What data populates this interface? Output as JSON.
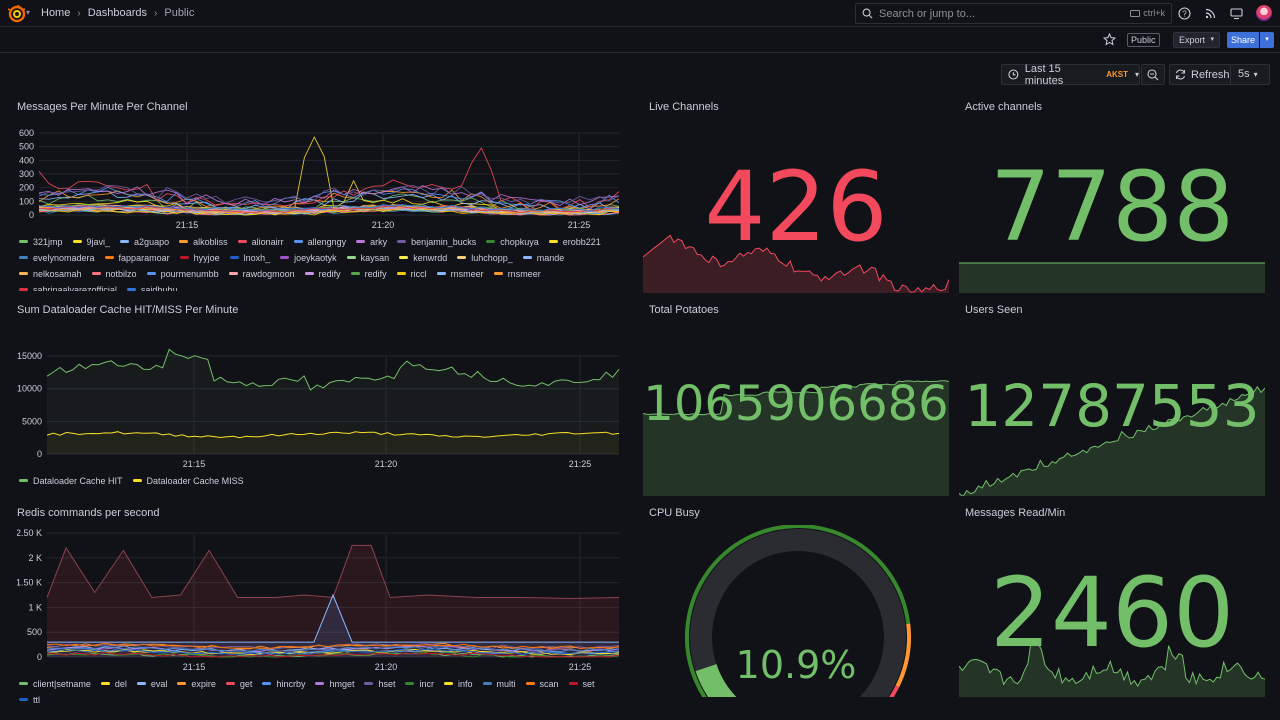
{
  "nav": {
    "breadcrumb": [
      "Home",
      "Dashboards",
      "Public"
    ],
    "search_placeholder": "Search or jump to...",
    "search_shortcut": "ctrl+k"
  },
  "toolbar": {
    "public_label": "Public",
    "export_label": "Export",
    "share_label": "Share",
    "time_range": "Last 15 minutes",
    "timezone": "AKST",
    "refresh_label": "Refresh",
    "refresh_interval": "5s"
  },
  "colors": {
    "red": "#f2495c",
    "green": "#73bf69",
    "yellow": "#fade2a",
    "orange": "#ff9830"
  },
  "panels": {
    "messages_per_minute": {
      "title": "Messages Per Minute Per Channel",
      "y_ticks": [
        "600",
        "500",
        "400",
        "300",
        "200",
        "100",
        "0"
      ],
      "x_ticks": [
        "21:15",
        "21:20",
        "21:25"
      ],
      "legend": [
        {
          "name": "321jmp",
          "color": "#73bf69"
        },
        {
          "name": "9javi_",
          "color": "#fade2a"
        },
        {
          "name": "a2guapo",
          "color": "#8ab8ff"
        },
        {
          "name": "alkobliss",
          "color": "#ff9830"
        },
        {
          "name": "alionairr",
          "color": "#f2495c"
        },
        {
          "name": "allengngy",
          "color": "#5794f2"
        },
        {
          "name": "arky",
          "color": "#b877d9"
        },
        {
          "name": "benjamin_bucks",
          "color": "#705da0"
        },
        {
          "name": "chopkuya",
          "color": "#37872d"
        },
        {
          "name": "erobb221",
          "color": "#fade2a"
        },
        {
          "name": "evelynomadera",
          "color": "#447ebc"
        },
        {
          "name": "fapparamoar",
          "color": "#ff780a"
        },
        {
          "name": "hyyjoe",
          "color": "#c4162a"
        },
        {
          "name": "lnoxh_",
          "color": "#1f60c4"
        },
        {
          "name": "joeykaotyk",
          "color": "#a352cc"
        },
        {
          "name": "kaysan",
          "color": "#96d98d"
        },
        {
          "name": "kenwrdd",
          "color": "#ffee52"
        },
        {
          "name": "luhchopp_",
          "color": "#ffcb7d"
        },
        {
          "name": "mande",
          "color": "#8ab8ff"
        },
        {
          "name": "nelkosamah",
          "color": "#ffb357"
        },
        {
          "name": "notbilzo",
          "color": "#ff7383"
        },
        {
          "name": "pourmenumbb",
          "color": "#5794f2"
        },
        {
          "name": "rawdogmoon",
          "color": "#ffa6b0"
        },
        {
          "name": "redify",
          "color": "#ca95e5"
        },
        {
          "name": "redify",
          "color": "#56a64b"
        },
        {
          "name": "riccl",
          "color": "#f2cc0c"
        },
        {
          "name": "rnsmeer",
          "color": "#8ab8ff"
        },
        {
          "name": "rnsmeer",
          "color": "#ff9830"
        },
        {
          "name": "sabrinaalvarezofficial",
          "color": "#e02f44"
        },
        {
          "name": "saidbubu",
          "color": "#3274d9"
        }
      ]
    },
    "dataloader": {
      "title": "Sum Dataloader Cache HIT/MISS Per Minute",
      "y_ticks": [
        "15000",
        "10000",
        "5000",
        "0"
      ],
      "x_ticks": [
        "21:15",
        "21:20",
        "21:25"
      ],
      "legend": [
        {
          "name": "Dataloader Cache HIT",
          "color": "#73bf69"
        },
        {
          "name": "Dataloader Cache MISS",
          "color": "#fade2a"
        }
      ]
    },
    "redis": {
      "title": "Redis commands per second",
      "y_ticks": [
        "2.50 K",
        "2 K",
        "1.50 K",
        "1 K",
        "500",
        "0"
      ],
      "x_ticks": [
        "21:15",
        "21:20",
        "21:25"
      ],
      "legend": [
        {
          "name": "client|setname",
          "color": "#73bf69"
        },
        {
          "name": "del",
          "color": "#fade2a"
        },
        {
          "name": "eval",
          "color": "#8ab8ff"
        },
        {
          "name": "expire",
          "color": "#ff9830"
        },
        {
          "name": "get",
          "color": "#f2495c"
        },
        {
          "name": "hincrby",
          "color": "#5794f2"
        },
        {
          "name": "hmget",
          "color": "#b877d9"
        },
        {
          "name": "hset",
          "color": "#705da0"
        },
        {
          "name": "incr",
          "color": "#37872d"
        },
        {
          "name": "info",
          "color": "#fade2a"
        },
        {
          "name": "multi",
          "color": "#447ebc"
        },
        {
          "name": "scan",
          "color": "#ff780a"
        },
        {
          "name": "set",
          "color": "#c4162a"
        },
        {
          "name": "ttl",
          "color": "#1f60c4"
        }
      ]
    },
    "live_channels": {
      "title": "Live Channels",
      "value": "426",
      "color": "#f2495c"
    },
    "active_channels": {
      "title": "Active channels",
      "value": "7788",
      "color": "#73bf69"
    },
    "total_potatoes": {
      "title": "Total Potatoes",
      "value": "1065906686",
      "color": "#73bf69"
    },
    "users_seen": {
      "title": "Users Seen",
      "value": "12787553",
      "color": "#73bf69"
    },
    "cpu_busy": {
      "title": "CPU Busy",
      "value": "10.9%",
      "percent": 10.9,
      "color": "#73bf69"
    },
    "messages_read": {
      "title": "Messages Read/Min",
      "value": "2460",
      "color": "#73bf69"
    }
  }
}
